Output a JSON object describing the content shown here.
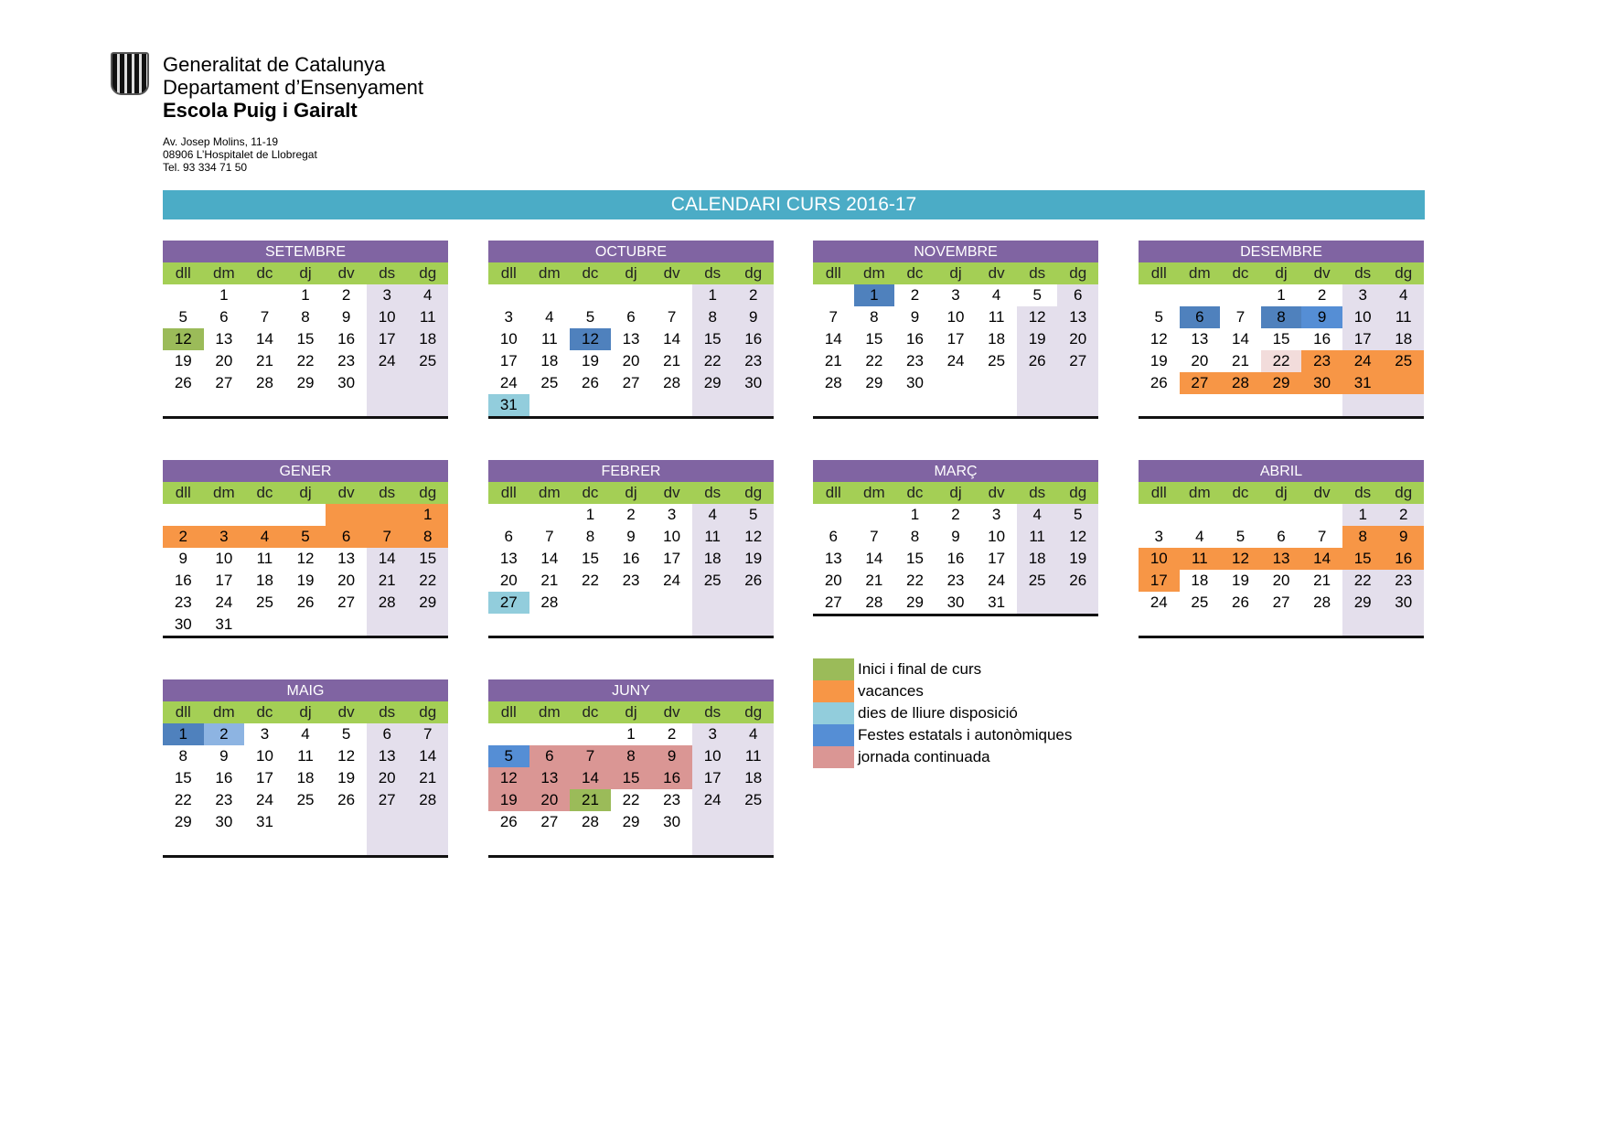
{
  "header": {
    "org": "Generalitat de Catalunya",
    "dept": "Departament d’Ensenyament",
    "school": "Escola Puig i Gairalt",
    "address": [
      "Av. Josep Molins, 11-19",
      "08906 L’Hospitalet de Llobregat",
      "Tel. 93 334 71 50"
    ]
  },
  "title": "CALENDARI CURS 2016-17",
  "weekdays": [
    "dll",
    "dm",
    "dc",
    "dj",
    "dv",
    "ds",
    "dg"
  ],
  "colors": {
    "g": "#9bbb59",
    "o": "#f79646",
    "b": "#4f81bd",
    "lb": "#558ed5",
    "c": "#92cddc",
    "p": "#da9694",
    "lp": "#f2dcdb",
    "sb": "#8db4e2",
    "w": "#e4dfec",
    "n": "#ffffff",
    "header": "#8064a2",
    "weekday": "#a4cf55",
    "title": "#4bacc6"
  },
  "months": [
    {
      "name": "SETEMBRE",
      "weeks": [
        [
          "",
          "1",
          "",
          "1",
          "2",
          "3",
          "4"
        ],
        [
          "5",
          "6",
          "7",
          "8",
          "9",
          "10",
          "11"
        ],
        [
          "12:g",
          "13",
          "14",
          "15",
          "16",
          "17",
          "18"
        ],
        [
          "19",
          "20",
          "21",
          "22",
          "23",
          "24",
          "25"
        ],
        [
          "26",
          "27",
          "28",
          "29",
          "30",
          "",
          ""
        ],
        [
          "",
          "",
          "",
          "",
          "",
          "",
          ""
        ]
      ]
    },
    {
      "name": "OCTUBRE",
      "weeks": [
        [
          "",
          "",
          "",
          "",
          "",
          "1",
          "2"
        ],
        [
          "3",
          "4",
          "5",
          "6",
          "7",
          "8",
          "9"
        ],
        [
          "10",
          "11",
          "12:b",
          "13",
          "14",
          "15",
          "16"
        ],
        [
          "17",
          "18",
          "19",
          "20",
          "21",
          "22",
          "23"
        ],
        [
          "24",
          "25",
          "26",
          "27",
          "28",
          "29",
          "30"
        ],
        [
          "31:c",
          "",
          "",
          "",
          "",
          "",
          ""
        ]
      ]
    },
    {
      "name": "NOVEMBRE",
      "weeks": [
        [
          "",
          "1:b",
          "2",
          "3",
          "4",
          "5:n",
          "6"
        ],
        [
          "7",
          "8",
          "9",
          "10",
          "11",
          "12",
          "13"
        ],
        [
          "14",
          "15",
          "16",
          "17",
          "18",
          "19",
          "20"
        ],
        [
          "21",
          "22",
          "23",
          "24",
          "25",
          "26",
          "27"
        ],
        [
          "28",
          "29",
          "30",
          "",
          "",
          "",
          ""
        ],
        [
          "",
          "",
          "",
          "",
          "",
          "",
          ""
        ]
      ]
    },
    {
      "name": "DESEMBRE",
      "weeks": [
        [
          "",
          "",
          "",
          "1",
          "2",
          "3",
          "4"
        ],
        [
          "5",
          "6:b",
          "7",
          "8:b",
          "9:lb",
          "10",
          "11"
        ],
        [
          "12",
          "13",
          "14",
          "15",
          "16",
          "17",
          "18"
        ],
        [
          "19",
          "20",
          "21",
          "22:lp",
          "23:o",
          "24:o",
          "25:o"
        ],
        [
          "26",
          "27:o",
          "28:o",
          "29:o",
          "30:o",
          "31:o",
          ":o"
        ],
        [
          "",
          "",
          "",
          "",
          "",
          "",
          ""
        ]
      ]
    },
    {
      "name": "GENER",
      "weeks": [
        [
          "",
          "",
          "",
          "",
          ":o",
          ":o",
          "1:o"
        ],
        [
          "2:o",
          "3:o",
          "4:o",
          "5:o",
          "6:o",
          "7:o",
          "8:o"
        ],
        [
          "9",
          "10",
          "11",
          "12",
          "13",
          "14",
          "15"
        ],
        [
          "16",
          "17",
          "18",
          "19",
          "20",
          "21",
          "22"
        ],
        [
          "23",
          "24",
          "25",
          "26",
          "27",
          "28",
          "29"
        ],
        [
          "30",
          "31",
          "",
          "",
          "",
          "",
          ""
        ]
      ]
    },
    {
      "name": "FEBRER",
      "weeks": [
        [
          "",
          "",
          "1",
          "2",
          "3",
          "4",
          "5"
        ],
        [
          "6",
          "7",
          "8",
          "9",
          "10",
          "11",
          "12"
        ],
        [
          "13",
          "14",
          "15",
          "16",
          "17",
          "18",
          "19"
        ],
        [
          "20",
          "21",
          "22",
          "23",
          "24",
          "25",
          "26"
        ],
        [
          "27:c",
          "28",
          "",
          "",
          "",
          "",
          ""
        ],
        [
          "",
          "",
          "",
          "",
          "",
          "",
          ""
        ]
      ]
    },
    {
      "name": "MARÇ",
      "weeks": [
        [
          "",
          "",
          "1",
          "2",
          "3",
          "4",
          "5"
        ],
        [
          "6",
          "7",
          "8",
          "9",
          "10",
          "11",
          "12"
        ],
        [
          "13",
          "14",
          "15",
          "16",
          "17",
          "18",
          "19"
        ],
        [
          "20",
          "21",
          "22",
          "23",
          "24",
          "25",
          "26"
        ],
        [
          "27",
          "28",
          "29",
          "30",
          "31",
          "",
          ""
        ]
      ]
    },
    {
      "name": "ABRIL",
      "weeks": [
        [
          "",
          "",
          "",
          "",
          "",
          "1",
          "2"
        ],
        [
          "3",
          "4",
          "5",
          "6",
          "7",
          "8:o",
          "9:o"
        ],
        [
          "10:o",
          "11:o",
          "12:o",
          "13:o",
          "14:o",
          "15:o",
          "16:o"
        ],
        [
          "17:o",
          "18",
          "19",
          "20",
          "21",
          "22",
          "23"
        ],
        [
          "24",
          "25",
          "26",
          "27",
          "28",
          "29",
          "30"
        ],
        [
          "",
          "",
          "",
          "",
          "",
          "",
          ""
        ]
      ]
    },
    {
      "name": "MAIG",
      "weeks": [
        [
          "1:b",
          "2:sb",
          "3",
          "4",
          "5",
          "6",
          "7"
        ],
        [
          "8",
          "9",
          "10",
          "11",
          "12",
          "13",
          "14"
        ],
        [
          "15",
          "16",
          "17",
          "18",
          "19",
          "20",
          "21"
        ],
        [
          "22",
          "23",
          "24",
          "25",
          "26",
          "27",
          "28"
        ],
        [
          "29",
          "30",
          "31",
          "",
          "",
          "",
          ""
        ],
        [
          "",
          "",
          "",
          "",
          "",
          "",
          ""
        ]
      ]
    },
    {
      "name": "JUNY",
      "weeks": [
        [
          "",
          "",
          "",
          "1",
          "2",
          "3",
          "4"
        ],
        [
          "5:lb",
          "6:p",
          "7:p",
          "8:p",
          "9:p",
          "10",
          "11"
        ],
        [
          "12:p",
          "13:p",
          "14:p",
          "15:p",
          "16:p",
          "17",
          "18"
        ],
        [
          "19:p",
          "20:p",
          "21:g",
          "22",
          "23",
          "24",
          "25"
        ],
        [
          "26",
          "27",
          "28",
          "29",
          "30",
          "",
          ""
        ],
        [
          "",
          "",
          "",
          "",
          "",
          "",
          ""
        ]
      ]
    }
  ],
  "legend": [
    {
      "label": "Inici i final de curs",
      "color": "#9bbb59"
    },
    {
      "label": "vacances",
      "color": "#f79646"
    },
    {
      "label": "dies de lliure disposició",
      "color": "#92cddc"
    },
    {
      "label": "Festes estatals i autonòmiques",
      "color": "#558ed5"
    },
    {
      "label": "jornada continuada",
      "color": "#da9694"
    }
  ]
}
